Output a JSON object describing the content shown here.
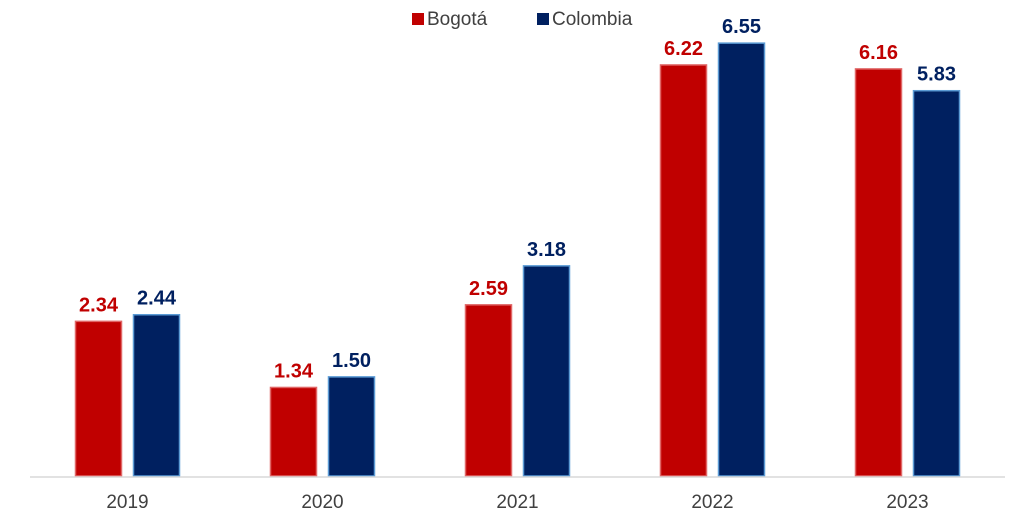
{
  "chart_data": {
    "type": "bar",
    "categories": [
      "2019",
      "2020",
      "2021",
      "2022",
      "2023"
    ],
    "series": [
      {
        "name": "Bogotá",
        "values": [
          2.34,
          1.34,
          2.59,
          6.22,
          6.16
        ],
        "labels": [
          "2.34",
          "1.34",
          "2.59",
          "6.22",
          "6.16"
        ],
        "color": "#C00000",
        "border": "#E06666"
      },
      {
        "name": "Colombia",
        "values": [
          2.44,
          1.5,
          3.18,
          6.55,
          5.83
        ],
        "labels": [
          "2.44",
          "1.50",
          "3.18",
          "6.55",
          "5.83"
        ],
        "color": "#002060",
        "border": "#5B9BD5"
      }
    ],
    "ylim": [
      0,
      6.9
    ],
    "grid": false,
    "legend_position": "top-center",
    "axis_color": "#D9D9D9"
  }
}
